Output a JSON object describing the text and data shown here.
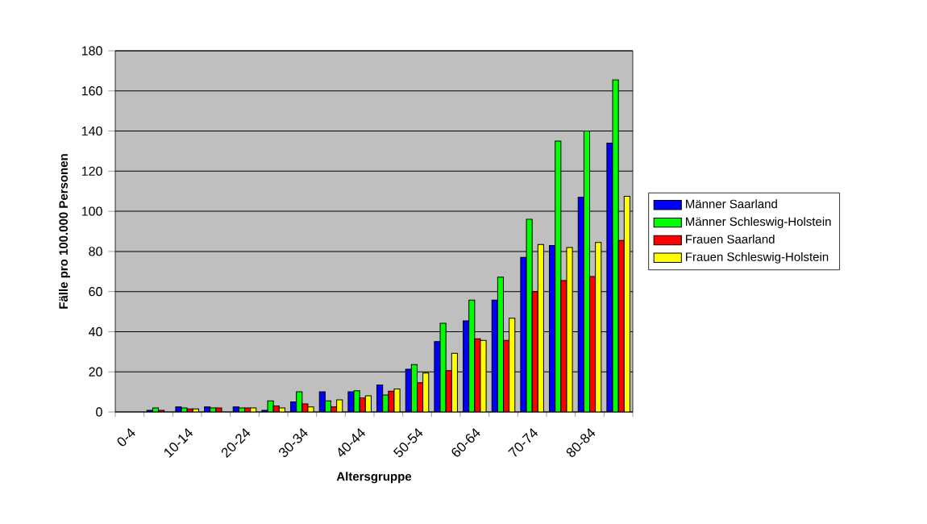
{
  "chart_data": {
    "type": "bar",
    "xlabel": "Altersgruppe",
    "ylabel": "Fälle pro 100.000 Personen",
    "categories": [
      "0-4",
      null,
      "10-14",
      null,
      "20-24",
      null,
      "30-34",
      null,
      "40-44",
      null,
      "50-54",
      null,
      "60-64",
      null,
      "70-74",
      null,
      "80-84",
      null
    ],
    "series": [
      {
        "name": "Männer Saarland",
        "color": "#0000ff",
        "values": [
          null,
          0.8,
          2.5,
          2.5,
          2.5,
          0.8,
          5,
          10,
          10,
          13.5,
          21.3,
          35.1,
          45.4,
          55.7,
          77,
          83,
          107,
          134
        ]
      },
      {
        "name": "Männer Schleswig-Holstein",
        "color": "#00ff00",
        "values": [
          null,
          2,
          2,
          2,
          2,
          5.5,
          10,
          5.5,
          10.5,
          8.4,
          23.6,
          44.2,
          55.7,
          67.2,
          96,
          135,
          140,
          165.5
        ]
      },
      {
        "name": "Frauen Saarland",
        "color": "#ff0000",
        "values": [
          null,
          0.8,
          1.5,
          2,
          2,
          3,
          4,
          2.5,
          7,
          10.3,
          14.6,
          20.6,
          36.5,
          35.7,
          60,
          65.5,
          67.5,
          85.5
        ]
      },
      {
        "name": "Frauen Schleswig-Holstein",
        "color": "#ffff00",
        "values": [
          null,
          null,
          1.5,
          null,
          2,
          2,
          2.5,
          6,
          8,
          11.5,
          19.4,
          29.2,
          35.7,
          46.7,
          83.5,
          82,
          84.5,
          107.5
        ]
      }
    ],
    "ylim": [
      0,
      180
    ],
    "yticks": [
      0,
      20,
      40,
      60,
      80,
      100,
      120,
      140,
      160,
      180
    ],
    "grid": "y",
    "legend": "right"
  }
}
